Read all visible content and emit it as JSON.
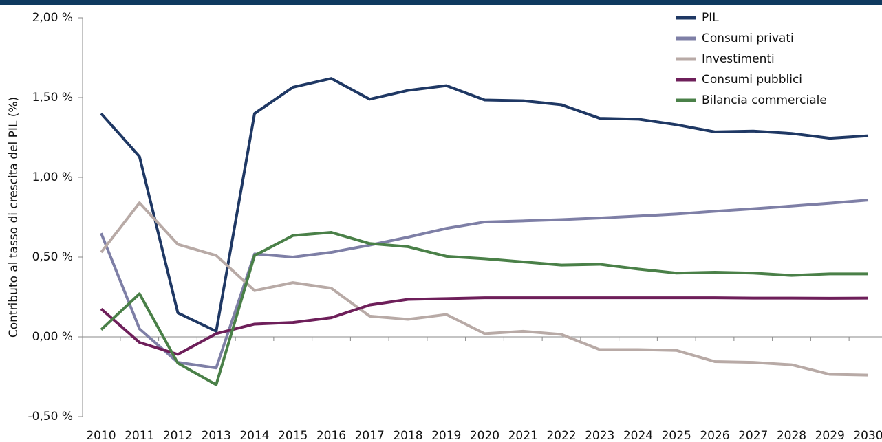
{
  "chart_data": {
    "type": "line",
    "y_label": "Contributo al tasso di crescita del PIL (%)",
    "categories": [
      "2010",
      "2011",
      "2012",
      "2013",
      "2014",
      "2015",
      "2016",
      "2017",
      "2018",
      "2019",
      "2020",
      "2021",
      "2022",
      "2023",
      "2024",
      "2025",
      "2026",
      "2027",
      "2028",
      "2029",
      "2030"
    ],
    "ylim": [
      -0.5,
      2.0
    ],
    "yticks": [
      {
        "value": -0.5,
        "label": "-0,50 %"
      },
      {
        "value": 0,
        "label": "0,00 %"
      },
      {
        "value": 0.5,
        "label": "0,50 %"
      },
      {
        "value": 1.0,
        "label": "1,00 %"
      },
      {
        "value": 1.5,
        "label": "1,50 %"
      },
      {
        "value": 2.0,
        "label": "2,00 %"
      }
    ],
    "grid": false,
    "legend": "upper right",
    "series": [
      {
        "name": "PIL",
        "color": "#1f3864",
        "values": [
          1.4,
          1.13,
          0.15,
          0.035,
          1.4,
          1.565,
          1.62,
          1.49,
          1.545,
          1.575,
          1.485,
          1.48,
          1.455,
          1.37,
          1.365,
          1.33,
          1.285,
          1.29,
          1.275,
          1.245,
          1.26
        ]
      },
      {
        "name": "Consumi privati",
        "color": "#7e7fa6",
        "values": [
          0.65,
          0.05,
          -0.16,
          -0.195,
          0.52,
          0.5,
          0.53,
          0.575,
          0.625,
          0.68,
          0.72,
          0.727,
          0.735,
          0.745,
          0.757,
          0.77,
          0.787,
          0.803,
          0.82,
          0.838,
          0.857
        ]
      },
      {
        "name": "Investimenti",
        "color": "#b8aaa6",
        "values": [
          0.53,
          0.84,
          0.58,
          0.51,
          0.29,
          0.34,
          0.305,
          0.13,
          0.11,
          0.14,
          0.02,
          0.035,
          0.015,
          -0.08,
          -0.08,
          -0.085,
          -0.155,
          -0.16,
          -0.175,
          -0.235,
          -0.24
        ]
      },
      {
        "name": "Consumi pubblici",
        "color": "#6e1f5a",
        "values": [
          0.175,
          -0.035,
          -0.11,
          0.02,
          0.08,
          0.09,
          0.12,
          0.2,
          0.235,
          0.24,
          0.245,
          0.245,
          0.245,
          0.245,
          0.245,
          0.245,
          0.245,
          0.243,
          0.243,
          0.242,
          0.243
        ]
      },
      {
        "name": "Bilancia commerciale",
        "color": "#4a8048",
        "values": [
          0.045,
          0.27,
          -0.165,
          -0.3,
          0.51,
          0.635,
          0.655,
          0.585,
          0.565,
          0.505,
          0.49,
          0.47,
          0.45,
          0.455,
          0.425,
          0.4,
          0.405,
          0.4,
          0.385,
          0.395,
          0.395
        ]
      }
    ]
  }
}
